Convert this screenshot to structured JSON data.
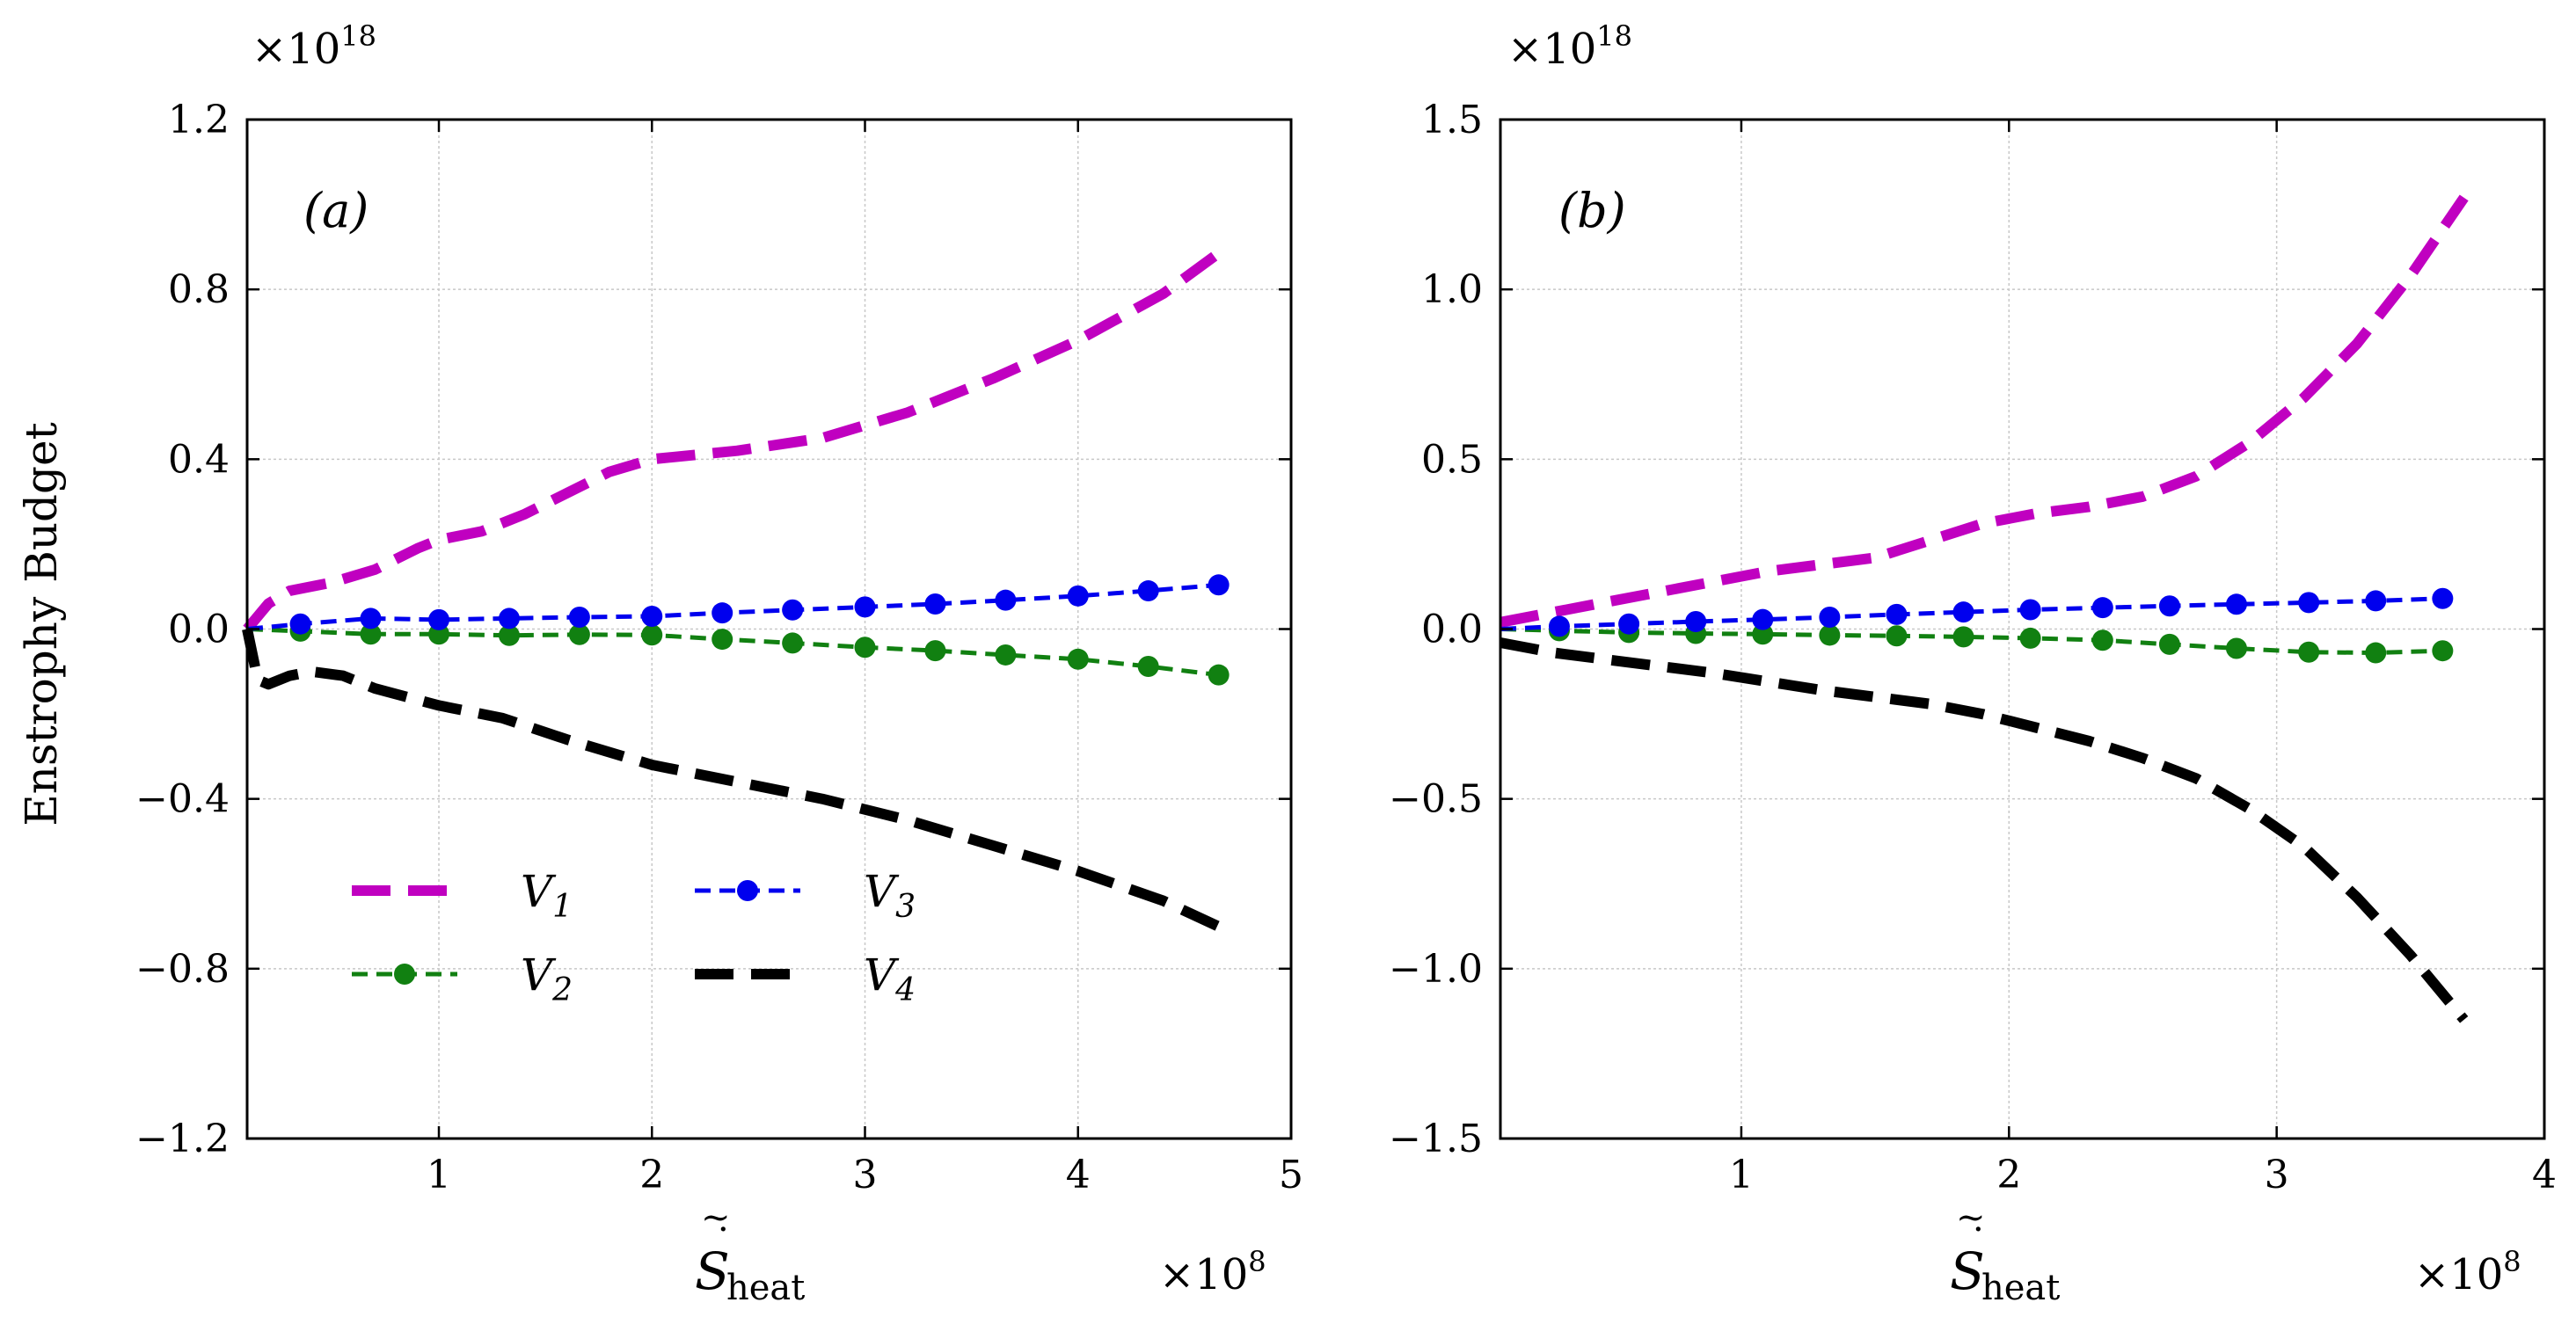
{
  "chart_data": [
    {
      "type": "line",
      "panel_label": "(a)",
      "xlabel_base": "S",
      "xlabel_sub": "heat",
      "ylabel": "Enstrophy Budget",
      "x_scale": "×10",
      "x_scale_exp": "8",
      "y_scale": "×10",
      "y_scale_exp": "18",
      "xlim": [
        0.1,
        5.0
      ],
      "ylim": [
        -1.2,
        1.2
      ],
      "xticks": [
        1,
        2,
        3,
        4,
        5
      ],
      "xtick_labels": [
        "1",
        "2",
        "3",
        "4",
        "5"
      ],
      "yticks": [
        -1.2,
        -0.8,
        -0.4,
        0.0,
        0.4,
        0.8,
        1.2
      ],
      "ytick_labels": [
        "−1.2",
        "−0.8",
        "−0.4",
        "0.0",
        "0.4",
        "0.8",
        "1.2"
      ],
      "grid": true,
      "legend_position": "lower-left",
      "series": [
        {
          "name": "V1",
          "label_base": "V",
          "label_sub": "1",
          "color": "#c000c0",
          "style": "dashed-thick",
          "marker": "none",
          "x": [
            0.1,
            0.2,
            0.3,
            0.5,
            0.7,
            0.9,
            1.0,
            1.2,
            1.4,
            1.6,
            1.8,
            2.0,
            2.4,
            2.8,
            3.2,
            3.6,
            4.0,
            4.4,
            4.7
          ],
          "y": [
            0.0,
            0.06,
            0.09,
            0.11,
            0.14,
            0.19,
            0.21,
            0.23,
            0.27,
            0.32,
            0.37,
            0.4,
            0.42,
            0.45,
            0.51,
            0.59,
            0.68,
            0.79,
            0.9
          ]
        },
        {
          "name": "V2",
          "label_base": "V",
          "label_sub": "2",
          "color": "#118011",
          "style": "dashed",
          "marker": "circle",
          "x": [
            0.1,
            0.35,
            0.68,
            1.0,
            1.33,
            1.66,
            2.0,
            2.33,
            2.66,
            3.0,
            3.33,
            3.66,
            4.0,
            4.33,
            4.66
          ],
          "y": [
            0.0,
            -0.005,
            -0.012,
            -0.012,
            -0.015,
            -0.013,
            -0.014,
            -0.024,
            -0.033,
            -0.043,
            -0.051,
            -0.061,
            -0.071,
            -0.088,
            -0.108
          ]
        },
        {
          "name": "V3",
          "label_base": "V",
          "label_sub": "3",
          "color": "#0000ee",
          "style": "dashed",
          "marker": "circle",
          "x": [
            0.1,
            0.35,
            0.68,
            1.0,
            1.33,
            1.66,
            2.0,
            2.33,
            2.66,
            3.0,
            3.33,
            3.66,
            4.0,
            4.33,
            4.66
          ],
          "y": [
            0.0,
            0.012,
            0.025,
            0.022,
            0.025,
            0.028,
            0.03,
            0.038,
            0.045,
            0.052,
            0.059,
            0.068,
            0.078,
            0.09,
            0.104
          ]
        },
        {
          "name": "V4",
          "label_base": "V",
          "label_sub": "4",
          "color": "#000000",
          "style": "dashed-thick",
          "marker": "none",
          "x": [
            0.1,
            0.15,
            0.2,
            0.3,
            0.4,
            0.55,
            0.7,
            0.85,
            1.0,
            1.3,
            1.6,
            2.0,
            2.4,
            2.8,
            3.2,
            3.6,
            4.0,
            4.4,
            4.7
          ],
          "y": [
            0.0,
            -0.12,
            -0.13,
            -0.11,
            -0.1,
            -0.11,
            -0.14,
            -0.16,
            -0.18,
            -0.21,
            -0.26,
            -0.32,
            -0.36,
            -0.4,
            -0.45,
            -0.51,
            -0.57,
            -0.64,
            -0.71
          ]
        }
      ],
      "legend": [
        "V1",
        "V2",
        "V3",
        "V4"
      ]
    },
    {
      "type": "line",
      "panel_label": "(b)",
      "xlabel_base": "S",
      "xlabel_sub": "heat",
      "ylabel": "",
      "x_scale": "×10",
      "x_scale_exp": "8",
      "y_scale": "×10",
      "y_scale_exp": "18",
      "xlim": [
        0.1,
        4.0
      ],
      "ylim": [
        -1.5,
        1.5
      ],
      "xticks": [
        1,
        2,
        3,
        4
      ],
      "xtick_labels": [
        "1",
        "2",
        "3",
        "4"
      ],
      "yticks": [
        -1.5,
        -1.0,
        -0.5,
        0.0,
        0.5,
        1.0,
        1.5
      ],
      "ytick_labels": [
        "−1.5",
        "−1.0",
        "−0.5",
        "0.0",
        "0.5",
        "1.0",
        "1.5"
      ],
      "grid": true,
      "series": [
        {
          "name": "V1",
          "color": "#c000c0",
          "style": "dashed-thick",
          "marker": "none",
          "x": [
            0.1,
            0.3,
            0.5,
            0.7,
            0.9,
            1.1,
            1.3,
            1.5,
            1.7,
            1.9,
            2.1,
            2.3,
            2.5,
            2.7,
            2.9,
            3.1,
            3.3,
            3.5,
            3.7
          ],
          "y": [
            0.02,
            0.05,
            0.08,
            0.11,
            0.14,
            0.17,
            0.19,
            0.21,
            0.26,
            0.31,
            0.34,
            0.36,
            0.39,
            0.45,
            0.55,
            0.68,
            0.84,
            1.04,
            1.27
          ]
        },
        {
          "name": "V2",
          "color": "#118011",
          "style": "dashed",
          "marker": "circle",
          "x": [
            0.1,
            0.32,
            0.58,
            0.83,
            1.08,
            1.33,
            1.58,
            1.83,
            2.08,
            2.35,
            2.6,
            2.85,
            3.12,
            3.37,
            3.62
          ],
          "y": [
            0.0,
            -0.005,
            -0.01,
            -0.013,
            -0.015,
            -0.018,
            -0.02,
            -0.023,
            -0.027,
            -0.033,
            -0.045,
            -0.057,
            -0.068,
            -0.07,
            -0.064
          ]
        },
        {
          "name": "V3",
          "color": "#0000ee",
          "style": "dashed",
          "marker": "circle",
          "x": [
            0.1,
            0.32,
            0.58,
            0.83,
            1.08,
            1.33,
            1.58,
            1.83,
            2.08,
            2.35,
            2.6,
            2.85,
            3.12,
            3.37,
            3.62
          ],
          "y": [
            0.0,
            0.008,
            0.015,
            0.022,
            0.028,
            0.035,
            0.043,
            0.05,
            0.057,
            0.063,
            0.068,
            0.073,
            0.078,
            0.083,
            0.09
          ]
        },
        {
          "name": "V4",
          "color": "#000000",
          "style": "dashed-thick",
          "marker": "none",
          "x": [
            0.1,
            0.3,
            0.5,
            0.7,
            0.9,
            1.1,
            1.3,
            1.5,
            1.7,
            1.9,
            2.1,
            2.3,
            2.5,
            2.7,
            2.9,
            3.1,
            3.3,
            3.5,
            3.7
          ],
          "y": [
            -0.04,
            -0.07,
            -0.09,
            -0.11,
            -0.13,
            -0.155,
            -0.18,
            -0.2,
            -0.22,
            -0.25,
            -0.29,
            -0.33,
            -0.38,
            -0.44,
            -0.53,
            -0.64,
            -0.79,
            -0.96,
            -1.15
          ]
        }
      ]
    }
  ]
}
